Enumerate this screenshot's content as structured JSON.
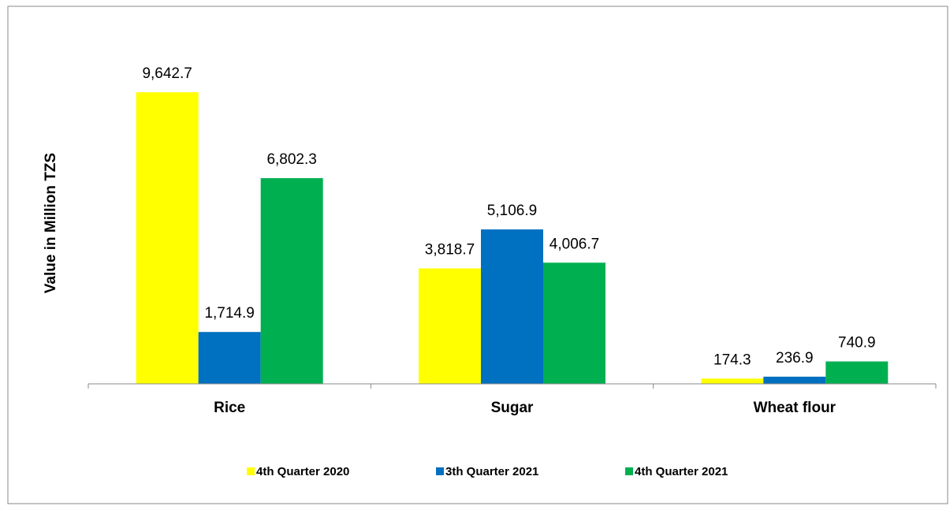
{
  "chart_data": {
    "type": "bar",
    "y_label": "Value in Million TZS",
    "categories": [
      "Rice",
      "Sugar",
      "Wheat flour"
    ],
    "series": [
      {
        "name": "4th Quarter 2020",
        "color": "#ffff00",
        "values": [
          9642.7,
          3818.7,
          174.3
        ],
        "value_labels": [
          "9,642.7",
          "3,818.7",
          "174.3"
        ]
      },
      {
        "name": "3th Quarter 2021",
        "color": "#0070c0",
        "values": [
          1714.9,
          5106.9,
          236.9
        ],
        "value_labels": [
          "1,714.9",
          "5,106.9",
          "236.9"
        ]
      },
      {
        "name": "4th Quarter 2021",
        "color": "#00b050",
        "values": [
          6802.3,
          4006.7,
          740.9
        ],
        "value_labels": [
          "6,802.3",
          "4,006.7",
          "740.9"
        ]
      }
    ],
    "ylim": [
      0,
      11000
    ],
    "legend": "bottom"
  }
}
